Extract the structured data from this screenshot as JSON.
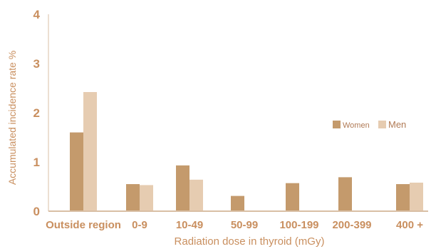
{
  "chart_data": {
    "type": "bar",
    "title": "",
    "xlabel": "Radiation dose in thyroid (mGy)",
    "ylabel": "Accumulated incidence rate %",
    "categories": [
      "Outside region",
      "0-9",
      "10-49",
      "50-99",
      "100-199",
      "200-399",
      "400 +"
    ],
    "series": [
      {
        "name": "Women",
        "values": [
          1.6,
          0.55,
          0.93,
          0.31,
          0.57,
          0.69,
          0.55
        ],
        "color": "#c49a6c"
      },
      {
        "name": "Men",
        "values": [
          2.42,
          0.53,
          0.64,
          null,
          null,
          null,
          0.58
        ],
        "color": "#e6ccb1"
      }
    ],
    "ylim": [
      0,
      4
    ],
    "yticks": [
      "0",
      "1",
      "2",
      "3",
      "4"
    ],
    "grid": false,
    "legend_position": "right",
    "axis_color": "#d9bfa5",
    "tick_color": "#c98f5f",
    "title_color": "#c98f5f"
  }
}
